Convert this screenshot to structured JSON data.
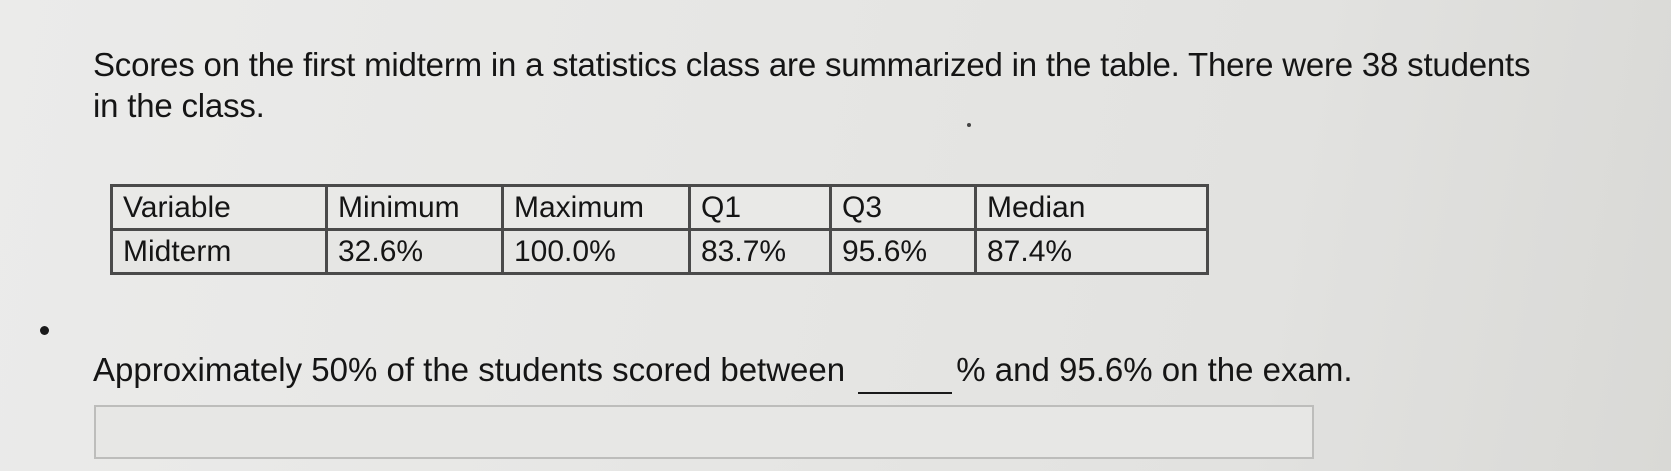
{
  "question": {
    "text": "Scores on the first midterm in a statistics class are summarized in the table. There were 38 students in the class."
  },
  "table": {
    "headers": [
      "Variable",
      "Minimum",
      "Maximum",
      "Q1",
      "Q3",
      "Median"
    ],
    "rows": [
      [
        "Midterm",
        "32.6%",
        "100.0%",
        "83.7%",
        "95.6%",
        "87.4%"
      ]
    ]
  },
  "prompt": {
    "before_blank": "Approximately 50% of the students scored between",
    "after_blank": "% and 95.6% on the exam."
  },
  "answer": {
    "value": "",
    "placeholder": ""
  }
}
